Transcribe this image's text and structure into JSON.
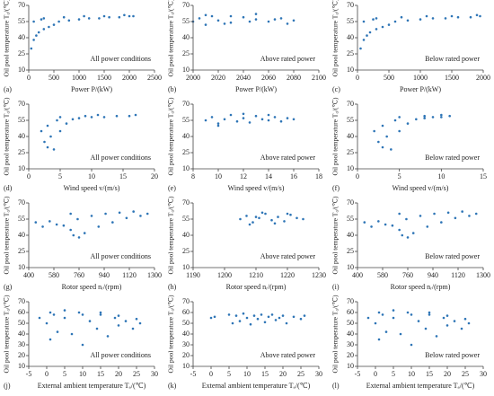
{
  "chart_data": [
    {
      "type": "scatter",
      "label": "(a)",
      "xlabel": "Power P/(kW)",
      "ylabel": "Oil pool temperature T₀/(℃)",
      "annotation": "All power conditions",
      "color": "#2e75b6",
      "xlim": [
        0,
        2500
      ],
      "xticks": [
        0,
        500,
        1000,
        1500,
        2000,
        2500
      ],
      "ylim": [
        10,
        70
      ],
      "yticks": [
        10,
        25,
        40,
        55,
        70
      ],
      "x": [
        50,
        100,
        150,
        200,
        300,
        400,
        500,
        600,
        800,
        1000,
        1200,
        1400,
        1600,
        1800,
        2000,
        2080,
        300,
        700,
        1100,
        1500,
        1900,
        100,
        250
      ],
      "y": [
        30,
        38,
        42,
        45,
        48,
        50,
        52,
        55,
        56,
        57,
        58,
        58,
        59,
        59,
        60,
        60,
        58,
        59,
        60,
        60,
        61,
        55,
        57
      ]
    },
    {
      "type": "scatter",
      "label": "(b)",
      "xlabel": "Power P/(kW)",
      "ylabel": "Oil pool temperature T₀/(℃)",
      "annotation": "Above rated power",
      "color": "#2e75b6",
      "xlim": [
        2000,
        2100
      ],
      "xticks": [
        2000,
        2020,
        2040,
        2060,
        2080,
        2100
      ],
      "ylim": [
        10,
        70
      ],
      "yticks": [
        10,
        25,
        40,
        55,
        70
      ],
      "x": [
        2000,
        2005,
        2010,
        2015,
        2020,
        2030,
        2040,
        2050,
        2060,
        2070,
        2075,
        2080,
        2010,
        2030,
        2050,
        2065,
        2025,
        2045
      ],
      "y": [
        55,
        58,
        52,
        60,
        56,
        54,
        59,
        57,
        55,
        58,
        53,
        56,
        61,
        60,
        62,
        57,
        53,
        55
      ]
    },
    {
      "type": "scatter",
      "label": "(c)",
      "xlabel": "Power P/(kW)",
      "ylabel": "Oil pool temperature T₀/(℃)",
      "annotation": "Below rated power",
      "color": "#2e75b6",
      "xlim": [
        0,
        2000
      ],
      "xticks": [
        0,
        500,
        1000,
        1500,
        2000
      ],
      "ylim": [
        10,
        70
      ],
      "yticks": [
        10,
        25,
        40,
        55,
        70
      ],
      "x": [
        50,
        100,
        150,
        200,
        300,
        400,
        500,
        600,
        800,
        1000,
        1200,
        1400,
        1600,
        1800,
        1950,
        300,
        700,
        1100,
        1500,
        1900,
        100,
        250
      ],
      "y": [
        30,
        38,
        42,
        45,
        48,
        50,
        52,
        55,
        56,
        57,
        58,
        58,
        59,
        59,
        60,
        58,
        59,
        60,
        60,
        61,
        55,
        57
      ]
    },
    {
      "type": "scatter",
      "label": "(d)",
      "xlabel": "Wind speed v/(m/s)",
      "ylabel": "Oil pool temperature T₀/(℃)",
      "annotation": "All power conditions",
      "color": "#2e75b6",
      "xlim": [
        0,
        20
      ],
      "xticks": [
        0,
        5,
        10,
        15,
        20
      ],
      "ylim": [
        10,
        70
      ],
      "yticks": [
        10,
        25,
        40,
        55,
        70
      ],
      "x": [
        2,
        2.5,
        3,
        3,
        3.5,
        4,
        4.5,
        5,
        6,
        7,
        8,
        10,
        12,
        14,
        16,
        17,
        5,
        9,
        11
      ],
      "y": [
        45,
        35,
        30,
        50,
        40,
        28,
        55,
        45,
        52,
        56,
        57,
        58,
        58,
        59,
        59,
        60,
        58,
        59,
        60
      ]
    },
    {
      "type": "scatter",
      "label": "(e)",
      "xlabel": "Wind speed v/(m/s)",
      "ylabel": "Oil pool temperature T₀/(℃)",
      "annotation": "Above rated power",
      "color": "#2e75b6",
      "xlim": [
        8,
        18
      ],
      "xticks": [
        8,
        10,
        12,
        14,
        16,
        18
      ],
      "ylim": [
        10,
        70
      ],
      "yticks": [
        10,
        25,
        40,
        55,
        70
      ],
      "x": [
        9,
        9.5,
        10,
        10.5,
        11,
        11.5,
        12,
        12.5,
        13,
        13.5,
        14,
        14.5,
        15,
        15.5,
        16,
        10,
        12,
        14
      ],
      "y": [
        55,
        58,
        52,
        56,
        60,
        54,
        57,
        53,
        59,
        56,
        55,
        58,
        54,
        57,
        56,
        50,
        61,
        60
      ]
    },
    {
      "type": "scatter",
      "label": "(f)",
      "xlabel": "Wind speed v/(m/s)",
      "ylabel": "Oil pool temperature T₀/(℃)",
      "annotation": "Below rated power",
      "color": "#2e75b6",
      "xlim": [
        0,
        15
      ],
      "xticks": [
        0,
        5,
        10,
        15
      ],
      "ylim": [
        10,
        70
      ],
      "yticks": [
        10,
        25,
        40,
        55,
        70
      ],
      "x": [
        2,
        2.5,
        3,
        3,
        3.5,
        4,
        4.5,
        5,
        6,
        7,
        8,
        9,
        10,
        11,
        5,
        8,
        10
      ],
      "y": [
        45,
        35,
        30,
        50,
        40,
        28,
        55,
        45,
        52,
        56,
        57,
        58,
        58,
        59,
        58,
        59,
        60
      ]
    },
    {
      "type": "scatter",
      "label": "(g)",
      "xlabel": "Rotor speed nᵣ/(rpm)",
      "ylabel": "Oil pool temperature T₀/(℃)",
      "annotation": "All power conditions",
      "color": "#2e75b6",
      "xlim": [
        400,
        1300
      ],
      "xticks": [
        400,
        580,
        760,
        940,
        1120,
        1300
      ],
      "ylim": [
        10,
        70
      ],
      "yticks": [
        10,
        25,
        40,
        55,
        70
      ],
      "x": [
        450,
        500,
        550,
        600,
        650,
        700,
        700,
        720,
        760,
        800,
        900,
        1000,
        1100,
        1200,
        1250,
        750,
        850,
        950,
        1050,
        1150
      ],
      "y": [
        52,
        48,
        53,
        50,
        49,
        45,
        60,
        40,
        38,
        42,
        48,
        52,
        56,
        58,
        60,
        55,
        58,
        60,
        61,
        62
      ]
    },
    {
      "type": "scatter",
      "label": "(h)",
      "xlabel": "Rotor speed nᵣ/(rpm)",
      "ylabel": "Oil pool temperature T₀/(℃)",
      "annotation": "Above rated power",
      "color": "#2e75b6",
      "xlim": [
        1190,
        1230
      ],
      "xticks": [
        1190,
        1200,
        1210,
        1220,
        1230
      ],
      "ylim": [
        10,
        70
      ],
      "yticks": [
        10,
        25,
        40,
        55,
        70
      ],
      "x": [
        1205,
        1207,
        1209,
        1211,
        1213,
        1215,
        1217,
        1219,
        1221,
        1223,
        1225,
        1208,
        1212,
        1216,
        1220,
        1210
      ],
      "y": [
        55,
        58,
        52,
        56,
        60,
        54,
        57,
        53,
        59,
        56,
        55,
        50,
        61,
        51,
        60,
        57
      ]
    },
    {
      "type": "scatter",
      "label": "(i)",
      "xlabel": "Rotor speed nᵣ/(rpm)",
      "ylabel": "Oil pool temperature T₀/(℃)",
      "annotation": "Below rated power",
      "color": "#2e75b6",
      "xlim": [
        400,
        1300
      ],
      "xticks": [
        400,
        580,
        760,
        940,
        1120,
        1300
      ],
      "ylim": [
        10,
        70
      ],
      "yticks": [
        10,
        25,
        40,
        55,
        70
      ],
      "x": [
        450,
        500,
        550,
        600,
        650,
        700,
        700,
        720,
        760,
        800,
        900,
        1000,
        1100,
        1200,
        1250,
        750,
        850,
        950,
        1050,
        1150
      ],
      "y": [
        52,
        48,
        53,
        50,
        49,
        45,
        60,
        40,
        38,
        42,
        48,
        52,
        56,
        58,
        60,
        55,
        58,
        60,
        61,
        62
      ]
    },
    {
      "type": "scatter",
      "label": "(j)",
      "xlabel": "External ambient temperature Tₐ/(℃)",
      "ylabel": "Oil pool temperature T₀/(℃)",
      "annotation": "All power conditions",
      "color": "#2e75b6",
      "xlim": [
        -5,
        30
      ],
      "xticks": [
        -5,
        0,
        5,
        10,
        15,
        20,
        25,
        30
      ],
      "ylim": [
        10,
        70
      ],
      "yticks": [
        10,
        20,
        30,
        40,
        50,
        60,
        70
      ],
      "x": [
        -2,
        0,
        1,
        2,
        3,
        5,
        7,
        9,
        10,
        12,
        14,
        15,
        17,
        19,
        20,
        22,
        24,
        26,
        1,
        5,
        10,
        15,
        20,
        25
      ],
      "y": [
        55,
        50,
        35,
        58,
        42,
        55,
        40,
        60,
        30,
        52,
        45,
        58,
        38,
        55,
        48,
        52,
        45,
        50,
        60,
        62,
        58,
        60,
        57,
        54
      ]
    },
    {
      "type": "scatter",
      "label": "(k)",
      "xlabel": "External ambient temperature Tₐ/(℃)",
      "ylabel": "Oil pool temperature T₀/(℃)",
      "annotation": "Above rated power",
      "color": "#2e75b6",
      "xlim": [
        -5,
        30
      ],
      "xticks": [
        -5,
        0,
        5,
        10,
        15,
        20,
        25,
        30
      ],
      "ylim": [
        10,
        70
      ],
      "yticks": [
        10,
        20,
        30,
        40,
        50,
        60,
        70
      ],
      "x": [
        0,
        1,
        5,
        6,
        7,
        8,
        9,
        10,
        11,
        12,
        13,
        14,
        15,
        16,
        17,
        18,
        19,
        20,
        21,
        23,
        25,
        26
      ],
      "y": [
        55,
        56,
        58,
        50,
        57,
        52,
        59,
        55,
        49,
        57,
        54,
        58,
        51,
        56,
        58,
        53,
        55,
        57,
        50,
        56,
        54,
        57
      ]
    },
    {
      "type": "scatter",
      "label": "(l)",
      "xlabel": "External ambient temperature Tₐ/(℃)",
      "ylabel": "Oil pool temperature T₀/(℃)",
      "annotation": "Below rated power",
      "color": "#2e75b6",
      "xlim": [
        -5,
        30
      ],
      "xticks": [
        -5,
        0,
        5,
        10,
        15,
        20,
        25,
        30
      ],
      "ylim": [
        10,
        70
      ],
      "yticks": [
        10,
        20,
        30,
        40,
        50,
        60,
        70
      ],
      "x": [
        -2,
        0,
        1,
        2,
        3,
        5,
        7,
        9,
        10,
        12,
        14,
        15,
        17,
        19,
        20,
        22,
        24,
        26,
        1,
        5,
        10,
        15,
        20,
        25
      ],
      "y": [
        55,
        50,
        35,
        58,
        42,
        55,
        40,
        60,
        30,
        52,
        45,
        58,
        38,
        55,
        48,
        52,
        45,
        50,
        60,
        62,
        58,
        60,
        57,
        54
      ]
    }
  ]
}
